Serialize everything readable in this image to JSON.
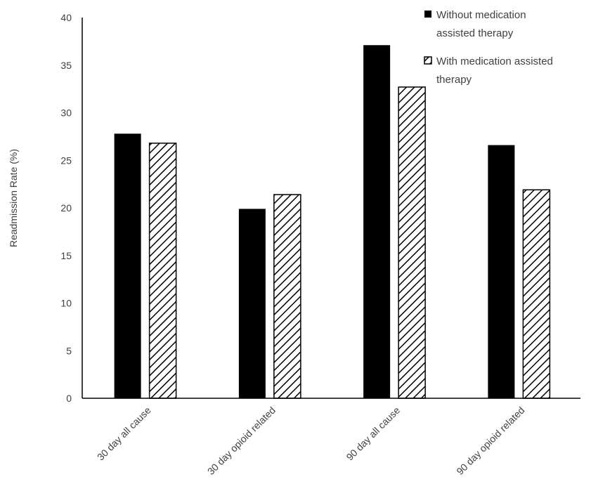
{
  "chart_data": {
    "type": "bar",
    "title": "",
    "xlabel": "",
    "ylabel": "Readmission Rate (%)",
    "ylim": [
      0,
      40
    ],
    "yticks": [
      0,
      5,
      10,
      15,
      20,
      25,
      30,
      35,
      40
    ],
    "categories": [
      "30 day all cause",
      "30 day opioid related",
      "90 day all cause",
      "90 day opioid related"
    ],
    "series": [
      {
        "name": "Without medication assisted therapy",
        "legend_lines": [
          "Without medication",
          "assisted therapy"
        ],
        "fill": "solid",
        "color": "#000000",
        "values": [
          27.8,
          19.9,
          37.1,
          26.6
        ]
      },
      {
        "name": "With medication assisted therapy",
        "legend_lines": [
          "With medication assisted",
          "therapy"
        ],
        "fill": "diagonal-hatch",
        "color": "#000000",
        "values": [
          26.8,
          21.4,
          32.7,
          21.9
        ]
      }
    ],
    "grid": false,
    "legend_position": "top-right"
  }
}
